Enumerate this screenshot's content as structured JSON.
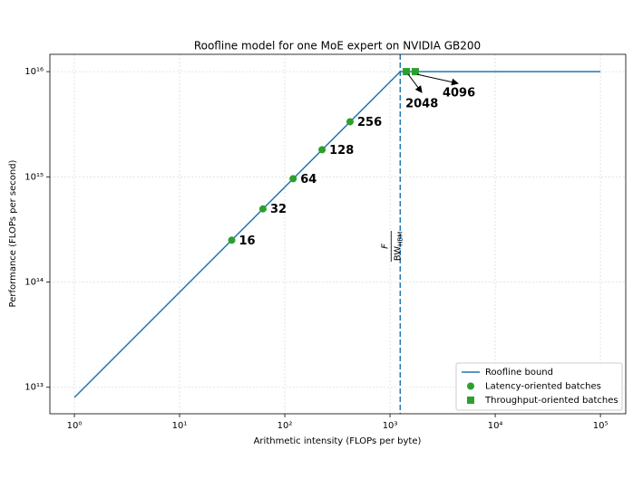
{
  "chart_data": {
    "type": "line",
    "title": "Roofline model for one MoE expert on NVIDIA GB200",
    "xlabel": "Arithmetic intensity (FLOPs per byte)",
    "ylabel": "Performance (FLOPs per second)",
    "xscale": "log",
    "yscale": "log",
    "grid": true,
    "legend": "lower right",
    "xlim": [
      0.585,
      174000
    ],
    "ylim": [
      5600000000000.0,
      1.46e+16
    ],
    "xticks": [
      {
        "value": 1,
        "label": "10⁰"
      },
      {
        "value": 10,
        "label": "10¹"
      },
      {
        "value": 100,
        "label": "10²"
      },
      {
        "value": 1000,
        "label": "10³"
      },
      {
        "value": 10000,
        "label": "10⁴"
      },
      {
        "value": 100000,
        "label": "10⁵"
      }
    ],
    "yticks": [
      {
        "value": 10000000000000.0,
        "label": "10¹³"
      },
      {
        "value": 100000000000000.0,
        "label": "10¹⁴"
      },
      {
        "value": 1000000000000000.0,
        "label": "10¹⁵"
      },
      {
        "value": 1e+16,
        "label": "10¹⁶"
      }
    ],
    "series": [
      {
        "name": "Roofline bound",
        "type": "line",
        "color": "#1f77b4",
        "x": [
          1,
          1250,
          100000
        ],
        "values": [
          8000000000000.0,
          1e+16,
          1e+16
        ]
      },
      {
        "name": "Latency-oriented batches",
        "type": "scatter",
        "marker": "circle",
        "color": "#2ca02c",
        "x": [
          31.3,
          62,
          120,
          226,
          417
        ],
        "values": [
          250000000000000.0,
          496000000000000.0,
          960000000000000.0,
          1810000000000000.0,
          3340000000000000.0
        ],
        "labels": [
          16,
          32,
          64,
          128,
          256
        ]
      },
      {
        "name": "Throughput-oriented batches",
        "type": "scatter",
        "marker": "square",
        "color": "#2ca02c",
        "x": [
          1430,
          1740
        ],
        "values": [
          1e+16,
          1e+16
        ],
        "labels": [
          2048,
          4096
        ]
      }
    ],
    "vline": {
      "x": 1250,
      "color": "#1f77b4",
      "numerator": "F",
      "denominator": "BW",
      "subscript": "HBM"
    }
  }
}
